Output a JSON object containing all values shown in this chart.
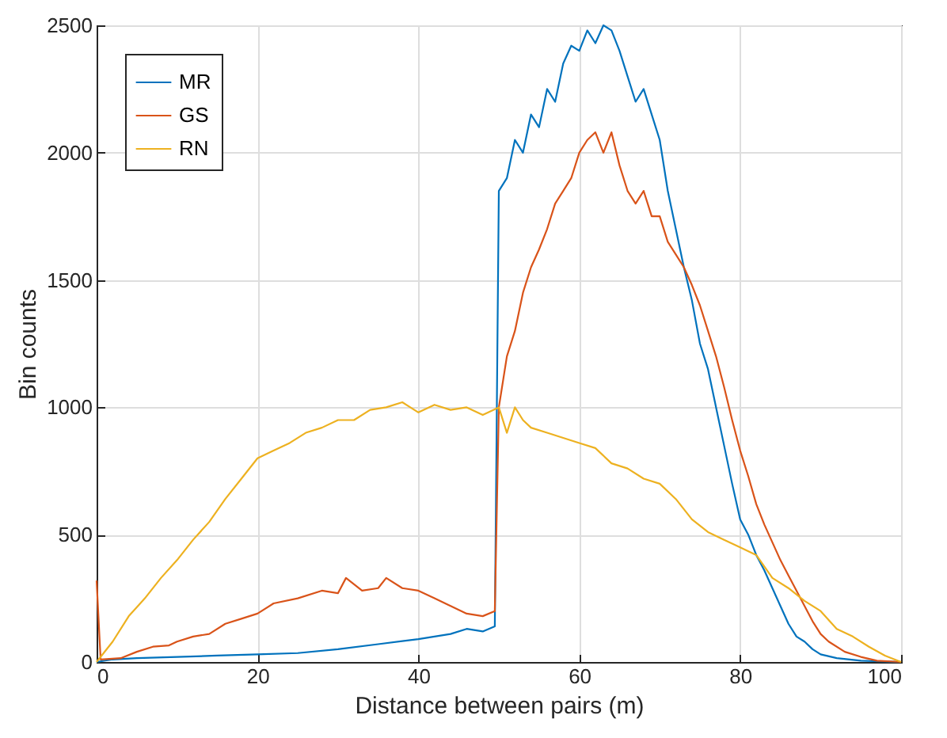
{
  "chart_data": {
    "type": "line",
    "xlabel": "Distance between pairs (m)",
    "ylabel": "Bin counts",
    "xlim": [
      0,
      100
    ],
    "ylim": [
      0,
      2500
    ],
    "xticks": [
      0,
      20,
      40,
      60,
      80,
      100
    ],
    "yticks": [
      0,
      500,
      1000,
      1500,
      2000,
      2500
    ],
    "grid": true,
    "legend": "top left",
    "line_style": "solid",
    "series": [
      {
        "name": "MR",
        "color": "#0072bd",
        "x": [
          0,
          2,
          5,
          10,
          15,
          20,
          25,
          30,
          35,
          40,
          44,
          46,
          48,
          49.5,
          50,
          51,
          52,
          53,
          54,
          55,
          56,
          57,
          58,
          59,
          60,
          61,
          62,
          63,
          64,
          65,
          66,
          67,
          68,
          69,
          70,
          71,
          72,
          73,
          74,
          75,
          76,
          77,
          78,
          79,
          80,
          81,
          82,
          83,
          84,
          85,
          86,
          87,
          88,
          89,
          90,
          92,
          95,
          100
        ],
        "values": [
          0,
          10,
          15,
          20,
          25,
          30,
          35,
          50,
          70,
          90,
          110,
          130,
          120,
          140,
          1850,
          1900,
          2050,
          2000,
          2150,
          2100,
          2250,
          2200,
          2350,
          2420,
          2400,
          2480,
          2430,
          2500,
          2480,
          2400,
          2300,
          2200,
          2250,
          2150,
          2050,
          1850,
          1700,
          1550,
          1420,
          1250,
          1150,
          1000,
          850,
          700,
          560,
          500,
          420,
          360,
          290,
          220,
          150,
          100,
          80,
          50,
          30,
          15,
          5,
          0
        ]
      },
      {
        "name": "GS",
        "color": "#d95319",
        "x": [
          0,
          0.5,
          3,
          5,
          7,
          9,
          10,
          12,
          14,
          16,
          18,
          20,
          22,
          25,
          28,
          30,
          31,
          33,
          35,
          36,
          38,
          40,
          42,
          44,
          46,
          48,
          49.5,
          50,
          51,
          52,
          53,
          54,
          55,
          56,
          57,
          58,
          59,
          60,
          61,
          62,
          63,
          64,
          65,
          66,
          67,
          68,
          69,
          70,
          71,
          72,
          73,
          74,
          75,
          76,
          77,
          78,
          79,
          80,
          81,
          82,
          83,
          84,
          85,
          86,
          87,
          88,
          89,
          90,
          91,
          93,
          95,
          97,
          100
        ],
        "values": [
          320,
          10,
          15,
          40,
          60,
          65,
          80,
          100,
          110,
          150,
          170,
          190,
          230,
          250,
          280,
          270,
          330,
          280,
          290,
          330,
          290,
          280,
          250,
          220,
          190,
          180,
          200,
          1000,
          1200,
          1300,
          1450,
          1550,
          1620,
          1700,
          1800,
          1850,
          1900,
          2000,
          2050,
          2080,
          2000,
          2080,
          1950,
          1850,
          1800,
          1850,
          1750,
          1750,
          1650,
          1600,
          1550,
          1480,
          1400,
          1300,
          1200,
          1080,
          950,
          830,
          730,
          620,
          540,
          470,
          400,
          340,
          280,
          220,
          160,
          110,
          80,
          40,
          20,
          5,
          0
        ]
      },
      {
        "name": "RN",
        "color": "#edb120",
        "x": [
          0,
          2,
          4,
          6,
          8,
          10,
          12,
          14,
          16,
          18,
          20,
          22,
          24,
          26,
          28,
          30,
          32,
          34,
          36,
          38,
          40,
          42,
          44,
          46,
          48,
          50,
          51,
          52,
          53,
          54,
          56,
          58,
          60,
          62,
          64,
          66,
          68,
          70,
          72,
          74,
          76,
          78,
          80,
          82,
          84,
          86,
          88,
          90,
          92,
          94,
          96,
          98,
          100
        ],
        "values": [
          0,
          80,
          180,
          250,
          330,
          400,
          480,
          550,
          640,
          720,
          800,
          830,
          860,
          900,
          920,
          950,
          950,
          990,
          1000,
          1020,
          980,
          1010,
          990,
          1000,
          970,
          1000,
          900,
          1000,
          950,
          920,
          900,
          880,
          860,
          840,
          780,
          760,
          720,
          700,
          640,
          560,
          510,
          480,
          450,
          420,
          330,
          290,
          240,
          200,
          130,
          100,
          60,
          25,
          0
        ]
      }
    ]
  }
}
